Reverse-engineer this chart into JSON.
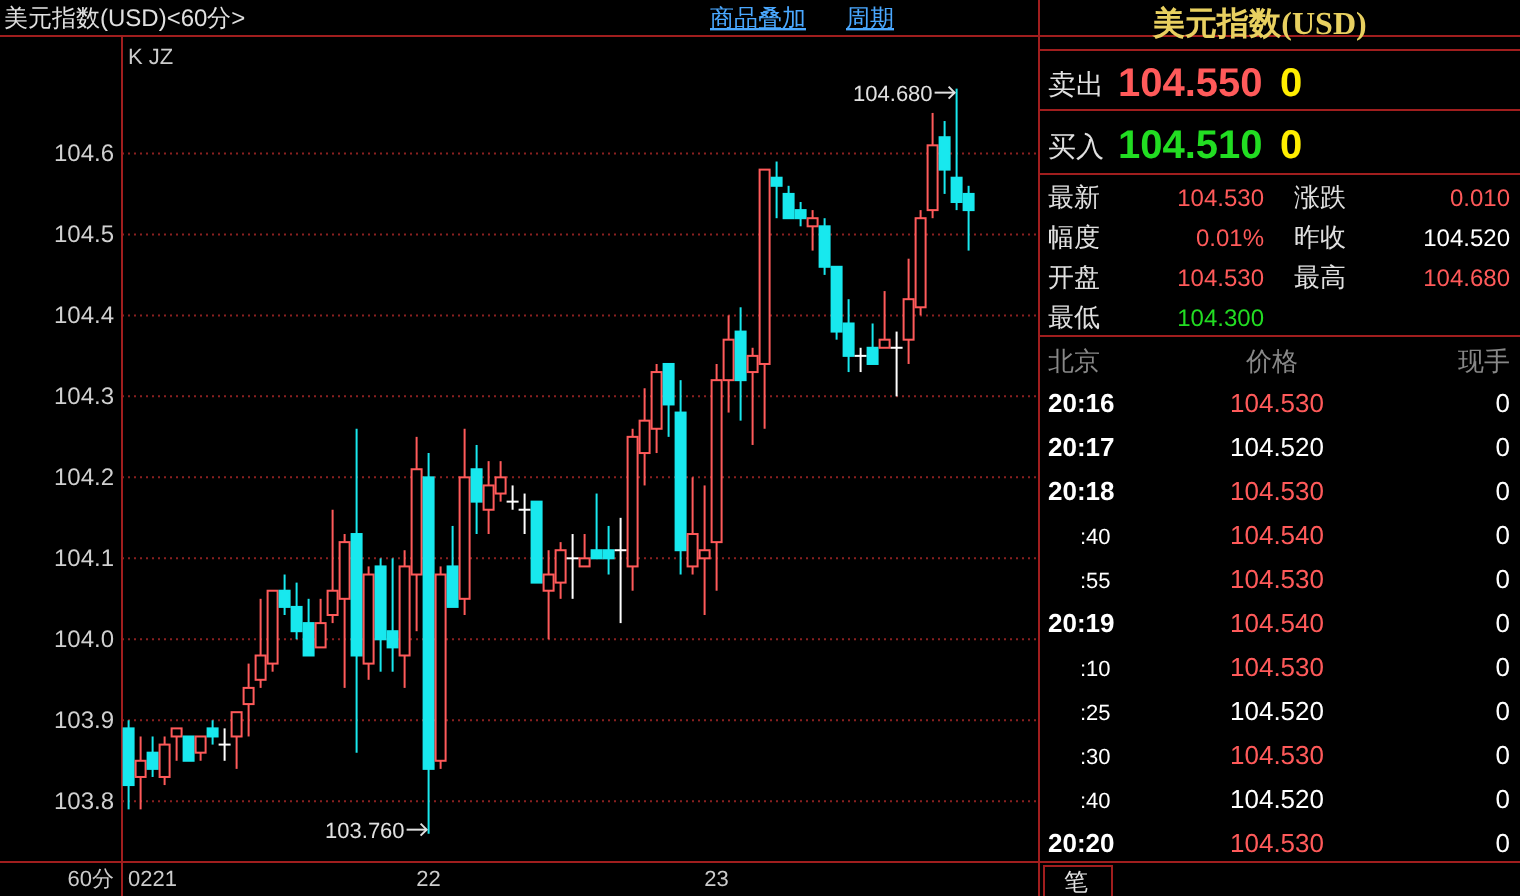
{
  "chart_data": [
    {
      "type": "candlestick",
      "title": "美元指数(USD)<60分>",
      "xlabel": "60分",
      "annotations": [
        "商品叠加",
        "周期",
        "K JZ",
        "104.680",
        "103.760"
      ],
      "categories": [
        null,
        null,
        "0221",
        null,
        null,
        null,
        null,
        null,
        null,
        null,
        null,
        null,
        null,
        null,
        null,
        null,
        null,
        null,
        null,
        null,
        null,
        null,
        null,
        null,
        null,
        "22",
        null,
        null,
        null,
        null,
        null,
        null,
        null,
        null,
        null,
        null,
        null,
        null,
        null,
        null,
        null,
        null,
        null,
        null,
        null,
        null,
        null,
        null,
        null,
        "23",
        null,
        null,
        null,
        null,
        null,
        null,
        null,
        null,
        null,
        null,
        null,
        null,
        null,
        null,
        null,
        null,
        null,
        null,
        null,
        null,
        null
      ],
      "ohlc": [
        [
          103.89,
          103.9,
          103.79,
          103.82
        ],
        [
          103.83,
          103.88,
          103.79,
          103.85
        ],
        [
          103.86,
          103.88,
          103.83,
          103.84
        ],
        [
          103.83,
          103.88,
          103.82,
          103.87
        ],
        [
          103.88,
          103.89,
          103.85,
          103.89
        ],
        [
          103.88,
          103.88,
          103.85,
          103.85
        ],
        [
          103.86,
          103.88,
          103.85,
          103.88
        ],
        [
          103.89,
          103.9,
          103.87,
          103.88
        ],
        [
          103.87,
          103.89,
          103.85,
          103.87
        ],
        [
          103.88,
          103.91,
          103.84,
          103.91
        ],
        [
          103.92,
          103.97,
          103.88,
          103.94
        ],
        [
          103.95,
          104.05,
          103.94,
          103.98
        ],
        [
          103.97,
          104.06,
          103.96,
          104.06
        ],
        [
          104.06,
          104.08,
          104.03,
          104.04
        ],
        [
          104.04,
          104.07,
          104.0,
          104.01
        ],
        [
          104.02,
          104.05,
          103.98,
          103.98
        ],
        [
          103.99,
          104.05,
          103.99,
          104.02
        ],
        [
          104.03,
          104.16,
          104.02,
          104.06
        ],
        [
          104.05,
          104.13,
          103.94,
          104.12
        ],
        [
          104.13,
          104.26,
          103.86,
          103.98
        ],
        [
          103.97,
          104.09,
          103.95,
          104.08
        ],
        [
          104.09,
          104.1,
          103.96,
          104.0
        ],
        [
          104.01,
          104.1,
          103.96,
          103.99
        ],
        [
          103.98,
          104.11,
          103.94,
          104.09
        ],
        [
          104.08,
          104.25,
          104.01,
          104.21
        ],
        [
          104.2,
          104.23,
          103.76,
          103.84
        ],
        [
          103.85,
          104.09,
          103.84,
          104.08
        ],
        [
          104.09,
          104.14,
          104.04,
          104.04
        ],
        [
          104.05,
          104.26,
          104.03,
          104.2
        ],
        [
          104.21,
          104.24,
          104.13,
          104.17
        ],
        [
          104.16,
          104.22,
          104.13,
          104.19
        ],
        [
          104.18,
          104.22,
          104.17,
          104.2
        ],
        [
          104.17,
          104.19,
          104.16,
          104.17
        ],
        [
          104.16,
          104.18,
          104.13,
          104.16
        ],
        [
          104.17,
          104.17,
          104.07,
          104.07
        ],
        [
          104.06,
          104.11,
          104.0,
          104.08
        ],
        [
          104.07,
          104.12,
          104.05,
          104.11
        ],
        [
          104.1,
          104.13,
          104.05,
          104.1
        ],
        [
          104.09,
          104.13,
          104.09,
          104.1
        ],
        [
          104.11,
          104.18,
          104.1,
          104.1
        ],
        [
          104.11,
          104.14,
          104.08,
          104.1
        ],
        [
          104.11,
          104.15,
          104.02,
          104.11
        ],
        [
          104.09,
          104.26,
          104.06,
          104.25
        ],
        [
          104.23,
          104.31,
          104.19,
          104.27
        ],
        [
          104.26,
          104.34,
          104.23,
          104.33
        ],
        [
          104.34,
          104.34,
          104.25,
          104.29
        ],
        [
          104.28,
          104.32,
          104.08,
          104.11
        ],
        [
          104.09,
          104.2,
          104.08,
          104.13
        ],
        [
          104.1,
          104.19,
          104.03,
          104.11
        ],
        [
          104.12,
          104.34,
          104.06,
          104.32
        ],
        [
          104.32,
          104.4,
          104.28,
          104.37
        ],
        [
          104.38,
          104.41,
          104.27,
          104.32
        ],
        [
          104.33,
          104.36,
          104.24,
          104.35
        ],
        [
          104.34,
          104.58,
          104.26,
          104.58
        ],
        [
          104.57,
          104.59,
          104.52,
          104.56
        ],
        [
          104.55,
          104.56,
          104.52,
          104.52
        ],
        [
          104.53,
          104.54,
          104.51,
          104.52
        ],
        [
          104.51,
          104.53,
          104.48,
          104.52
        ],
        [
          104.51,
          104.52,
          104.45,
          104.46
        ],
        [
          104.46,
          104.46,
          104.37,
          104.38
        ],
        [
          104.39,
          104.42,
          104.33,
          104.35
        ],
        [
          104.35,
          104.36,
          104.33,
          104.35
        ],
        [
          104.36,
          104.39,
          104.34,
          104.34
        ],
        [
          104.36,
          104.43,
          104.36,
          104.37
        ],
        [
          104.36,
          104.38,
          104.3,
          104.36
        ],
        [
          104.37,
          104.47,
          104.34,
          104.42
        ],
        [
          104.41,
          104.53,
          104.4,
          104.52
        ],
        [
          104.53,
          104.65,
          104.52,
          104.61
        ],
        [
          104.62,
          104.64,
          104.55,
          104.58
        ],
        [
          104.57,
          104.68,
          104.53,
          104.54
        ],
        [
          104.55,
          104.56,
          104.48,
          104.53
        ]
      ],
      "ylim": [
        103.725,
        104.745
      ],
      "yticks": [
        103.8,
        103.9,
        {
          "value": 104,
          "label": "104.0"
        },
        104.1,
        104.2,
        104.3,
        104.4,
        104.5,
        104.6
      ],
      "grid": "y"
    },
    {
      "type": "other",
      "title": "美元指数(USD)",
      "annotations": [
        "卖出",
        "104.550",
        "0",
        "买入",
        "104.510",
        "0",
        "最新",
        "104.530",
        "涨跌",
        "0.010",
        "幅度",
        "0.01%",
        "昨收",
        "104.520",
        "开盘",
        "104.530",
        "最高",
        "104.680",
        "最低",
        "104.300",
        "北京",
        "价格",
        "现手",
        "20:16",
        "104.530",
        "0",
        "20:17",
        "104.520",
        "0",
        "20:18",
        "104.530",
        "0",
        ":40",
        "104.540",
        "0",
        ":55",
        "104.530",
        "0",
        "20:19",
        "104.540",
        "0",
        ":10",
        "104.530",
        "0",
        ":25",
        "104.520",
        "0",
        ":30",
        "104.530",
        "0",
        ":40",
        "104.520",
        "0",
        "20:20",
        "104.530",
        "0",
        "笔"
      ]
    }
  ]
}
